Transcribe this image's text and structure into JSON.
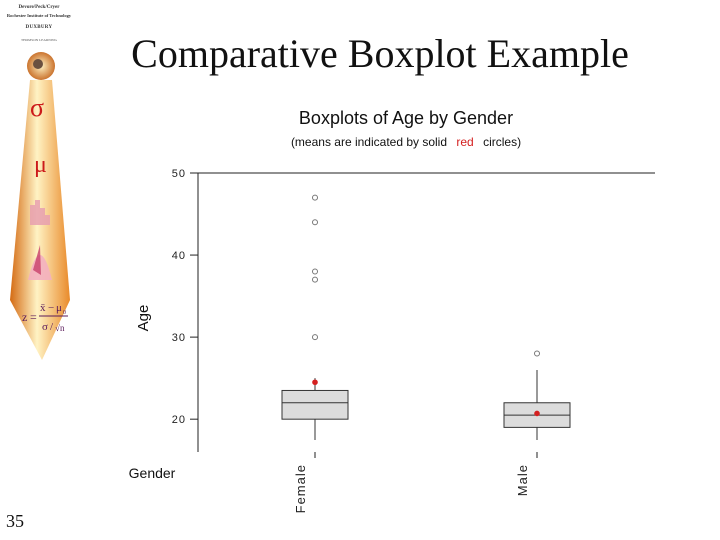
{
  "slide": {
    "title": "Comparative Boxplot Example",
    "number": "35"
  },
  "sidebar": {
    "credit_author": "Devore/Peck/Cryer",
    "credit_institute": "Rochester Institute of Technology",
    "credit_brand": "DUXBURY",
    "credit_publisher": "THOMSON LEARNING",
    "symbols": {
      "sigma": "σ",
      "mu": "μ"
    },
    "formula": {
      "z": "z",
      "equals": "=",
      "xbar": "x̄",
      "minus": "−",
      "mu0": "μ",
      "mu0_sub": "0",
      "sigma": "σ",
      "slash": "/",
      "sqrt_n": "√n"
    },
    "colors": {
      "tie_light": "#fff3c4",
      "tie_mid": "#f6b35a",
      "tie_dark": "#d46a12"
    }
  },
  "chart_data": {
    "type": "boxplot",
    "title": "Boxplots of Age by Gender",
    "subtitle": {
      "before": "(means are indicated by solid",
      "highlight": "red",
      "after": "circles)"
    },
    "ylabel": "Age",
    "xlabel": "Gender",
    "categories": [
      "Female",
      "Male"
    ],
    "ylim": [
      16,
      50
    ],
    "yticks": [
      20,
      30,
      40,
      50
    ],
    "grid": false,
    "boxes": [
      {
        "category": "Female",
        "whisker_low": 15,
        "q1": 20,
        "median": 22,
        "q3": 23.5,
        "whisker_high": 25,
        "mean": 24.5,
        "outliers": [
          30,
          37,
          38,
          44,
          47
        ]
      },
      {
        "category": "Male",
        "whisker_low": 15,
        "q1": 19,
        "median": 20.5,
        "q3": 22,
        "whisker_high": 26,
        "mean": 20.7,
        "outliers": [
          28
        ]
      }
    ],
    "colors": {
      "box_fill": "#dcdcdc",
      "line": "#333333",
      "mean_marker": "#d42020",
      "outlier": "#777777",
      "highlight_text": "#d42020"
    }
  }
}
